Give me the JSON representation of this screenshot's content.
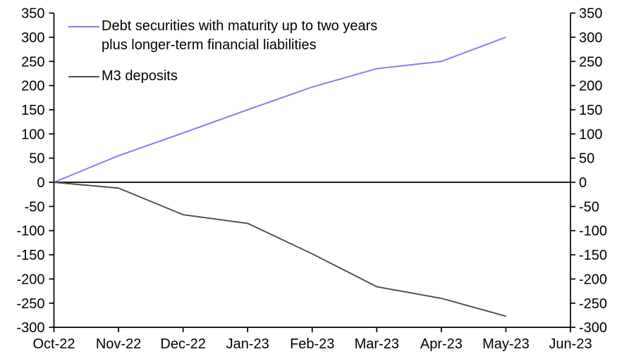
{
  "chart_data": {
    "type": "line",
    "title": "",
    "xlabel": "",
    "ylabel": "",
    "categories": [
      "Oct-22",
      "Nov-22",
      "Dec-22",
      "Jan-23",
      "Feb-23",
      "Mar-23",
      "Apr-23",
      "May-23"
    ],
    "x_axis_labels": [
      "Oct-22",
      "Nov-22",
      "Dec-22",
      "Jan-23",
      "Feb-23",
      "Mar-23",
      "Apr-23",
      "May-23",
      "Jun-23"
    ],
    "series": [
      {
        "name": "Debt securities with maturity up to two years plus longer-term financial liabilities",
        "label_lines": [
          "Debt securities with maturity up to two years",
          "plus longer-term financial liabilities"
        ],
        "color": "#7d7df0",
        "values": [
          0,
          55,
          102,
          150,
          197,
          235,
          250,
          300
        ]
      },
      {
        "name": "M3 deposits",
        "label_lines": [
          "M3 deposits"
        ],
        "color": "#4d4d4d",
        "values": [
          0,
          -12,
          -67,
          -85,
          -148,
          -216,
          -240,
          -277
        ]
      }
    ],
    "y_ticks": [
      350,
      300,
      250,
      200,
      150,
      100,
      50,
      0,
      -50,
      -100,
      -150,
      -200,
      -250,
      -300
    ],
    "ylim": [
      -300,
      350
    ],
    "y_axis_sides": "both",
    "zero_line": true,
    "grid": false,
    "legend_position": "top-left",
    "axis_color": "#000000",
    "text_color": "#000000"
  }
}
